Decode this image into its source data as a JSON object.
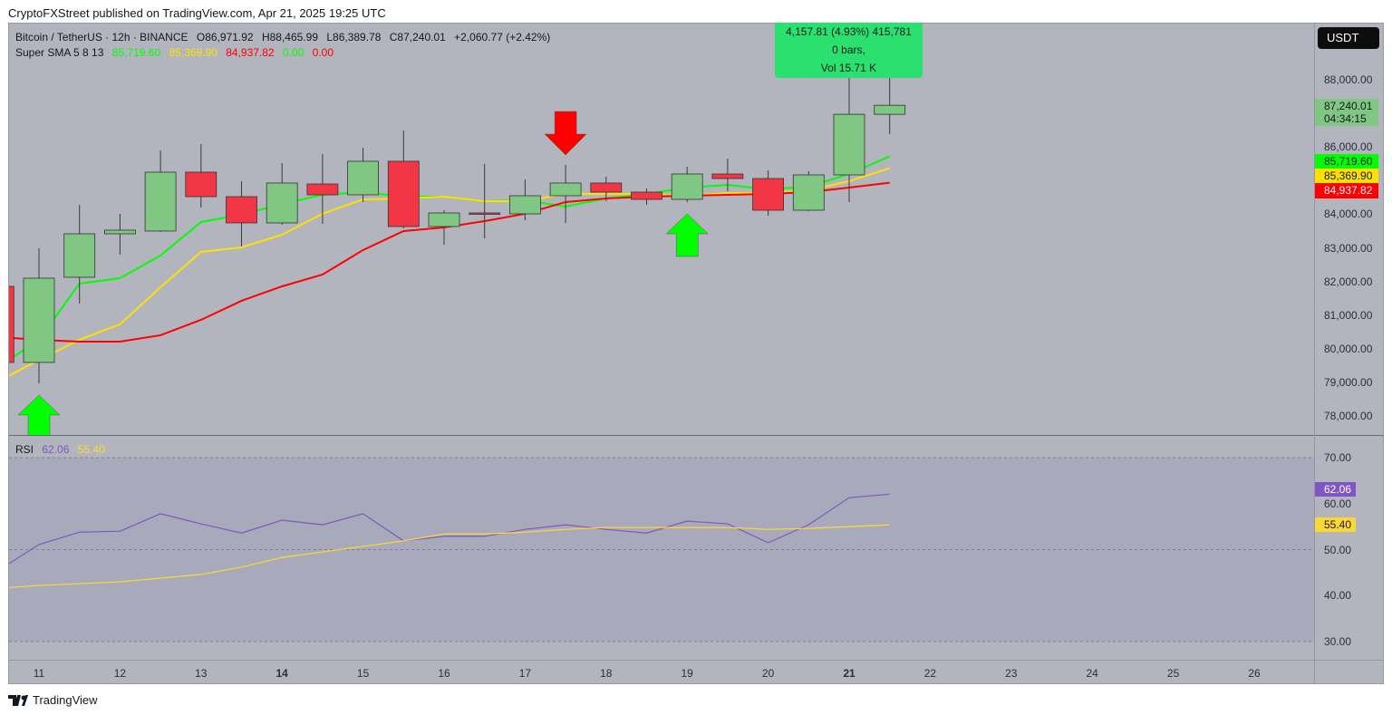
{
  "publisher_line": "CryptoFXStreet published on TradingView.com, Apr 21, 2025 19:25 UTC",
  "legend": {
    "symbol": "Bitcoin / TetherUS · 12h · BINANCE",
    "open": "O86,971.92",
    "high": "H88,465.99",
    "low": "L86,389.78",
    "close": "C87,240.01",
    "change": "+2,060.77 (+2.42%)",
    "indicator": "Super SMA 5 8 13",
    "sma_values": [
      "85,719.60",
      "85,369.90",
      "84,937.82",
      "0.00",
      "0.00"
    ],
    "rsi_label": "RSI",
    "rsi_value": "62.06",
    "rsi_ma_value": "55.40"
  },
  "tooltip": {
    "line1": "4,157.81 (4.93%) 415,781",
    "line2": "0 bars,",
    "line3": "Vol 15.71 K"
  },
  "currency_button": "USDT",
  "price_axis": {
    "ticks": [
      "88,000.00",
      "86,000.00",
      "84,000.00",
      "83,000.00",
      "82,000.00",
      "81,000.00",
      "80,000.00",
      "79,000.00",
      "78,000.00"
    ],
    "last_price": "87,240.01",
    "countdown": "04:34:15",
    "sma_tags": [
      "85,719.60",
      "85,369.90",
      "84,937.82"
    ]
  },
  "rsi_axis": {
    "ticks": [
      "70.00",
      "60.00",
      "50.00",
      "40.00",
      "30.00"
    ],
    "rsi_tag": "62.06",
    "ma_tag": "55.40"
  },
  "x_axis": {
    "ticks": [
      "11",
      "12",
      "13",
      "14",
      "15",
      "16",
      "17",
      "18",
      "19",
      "20",
      "21",
      "22",
      "23",
      "24",
      "25",
      "26"
    ],
    "bold": [
      "14",
      "21"
    ]
  },
  "footer": {
    "brand": "TradingView"
  },
  "colors": {
    "up": "#81c784",
    "down": "#f23645",
    "sma_fast": "#00ff00",
    "sma_mid": "#ffe100",
    "sma_slow": "#ff0000",
    "rsi": "#7e57c2",
    "rsi_ma": "#fdd835",
    "tooltip": "#2ae06f"
  },
  "chart_data": [
    {
      "type": "candlestick",
      "title": "Bitcoin / TetherUS · 12h · BINANCE",
      "x_unit": "April 2025 day (12h bars)",
      "ylim": [
        77500,
        89200
      ],
      "candles": [
        {
          "t": "10.5",
          "o": 81855,
          "h": 82100,
          "l": 79400,
          "c": 79592
        },
        {
          "t": "11",
          "o": 79592,
          "h": 82987,
          "l": 78972,
          "c": 82098
        },
        {
          "t": "11.5",
          "o": 82125,
          "h": 84281,
          "l": 81343,
          "c": 83418
        },
        {
          "t": "12",
          "o": 83418,
          "h": 84011,
          "l": 82799,
          "c": 83526
        },
        {
          "t": "12.5",
          "o": 83500,
          "h": 85898,
          "l": 83474,
          "c": 85251
        },
        {
          "t": "13",
          "o": 85251,
          "h": 86087,
          "l": 84200,
          "c": 84523
        },
        {
          "t": "13.5",
          "o": 84523,
          "h": 84982,
          "l": 83041,
          "c": 83742
        },
        {
          "t": "14",
          "o": 83742,
          "h": 85521,
          "l": 83688,
          "c": 84928
        },
        {
          "t": "14.5",
          "o": 84900,
          "h": 85790,
          "l": 83715,
          "c": 84577
        },
        {
          "t": "15",
          "o": 84577,
          "h": 85979,
          "l": 84362,
          "c": 85575
        },
        {
          "t": "15.5",
          "o": 85575,
          "h": 86491,
          "l": 83580,
          "c": 83634
        },
        {
          "t": "16",
          "o": 83634,
          "h": 84119,
          "l": 83095,
          "c": 84038
        },
        {
          "t": "16.5",
          "o": 84038,
          "h": 85494,
          "l": 83284,
          "c": 84011
        },
        {
          "t": "17",
          "o": 84011,
          "h": 85036,
          "l": 83823,
          "c": 84550
        },
        {
          "t": "17.5",
          "o": 84550,
          "h": 85467,
          "l": 83742,
          "c": 84928
        },
        {
          "t": "18",
          "o": 84928,
          "h": 85116,
          "l": 84389,
          "c": 84658
        },
        {
          "t": "18.5",
          "o": 84658,
          "h": 84766,
          "l": 84281,
          "c": 84442
        },
        {
          "t": "19",
          "o": 84442,
          "h": 85413,
          "l": 84362,
          "c": 85197
        },
        {
          "t": "19.5",
          "o": 85197,
          "h": 85655,
          "l": 84685,
          "c": 85062
        },
        {
          "t": "20",
          "o": 85062,
          "h": 85305,
          "l": 83958,
          "c": 84119
        },
        {
          "t": "20.5",
          "o": 84119,
          "h": 85278,
          "l": 84092,
          "c": 85170
        },
        {
          "t": "21",
          "o": 85170,
          "h": 88300,
          "l": 84362,
          "c": 86972
        },
        {
          "t": "21.5",
          "o": 86971.92,
          "h": 88465.99,
          "l": 86389.78,
          "c": 87240.01
        }
      ],
      "series": [
        {
          "name": "SMA 5",
          "values": [
            79456,
            80265,
            81936,
            82098,
            82772,
            83769,
            83985,
            84308,
            84577,
            84658,
            84523,
            84523,
            84389,
            84416,
            84227,
            84470,
            84604,
            84793,
            84874,
            84739,
            84820,
            85197,
            85719.6
          ]
        },
        {
          "name": "SMA 8",
          "values": [
            79025,
            79672,
            80265,
            80724,
            81829,
            82880,
            83014,
            83392,
            84012,
            84443,
            84470,
            84523,
            84389,
            84389,
            84604,
            84604,
            84604,
            84550,
            84631,
            84631,
            84712,
            84982,
            85369.9
          ]
        },
        {
          "name": "SMA 13",
          "values": [
            80346,
            80265,
            80211,
            80211,
            80400,
            80858,
            81424,
            81855,
            82206,
            82934,
            83500,
            83607,
            83796,
            84012,
            84362,
            84470,
            84523,
            84550,
            84577,
            84604,
            84658,
            84793,
            84937.82
          ]
        }
      ],
      "signals": [
        {
          "candle": "11",
          "type": "buy"
        },
        {
          "candle": "17.5",
          "type": "sell"
        },
        {
          "candle": "19",
          "type": "buy"
        }
      ]
    },
    {
      "type": "line",
      "title": "RSI",
      "ylim": [
        25,
        75
      ],
      "series": [
        {
          "name": "RSI",
          "values": [
            45.5,
            51.1,
            53.8,
            54.0,
            57.8,
            55.6,
            53.6,
            56.4,
            55.4,
            57.8,
            51.9,
            52.9,
            52.9,
            54.4,
            55.4,
            54.4,
            53.6,
            56.2,
            55.6,
            51.5,
            55.4,
            61.3,
            62.06
          ]
        },
        {
          "name": "RSI MA",
          "values": [
            41.6,
            42.2,
            42.6,
            43.0,
            43.8,
            44.6,
            46.2,
            48.3,
            49.5,
            50.7,
            51.9,
            53.4,
            53.4,
            53.8,
            54.4,
            54.8,
            54.8,
            54.8,
            54.8,
            54.4,
            54.6,
            55.0,
            55.4
          ]
        }
      ]
    }
  ]
}
